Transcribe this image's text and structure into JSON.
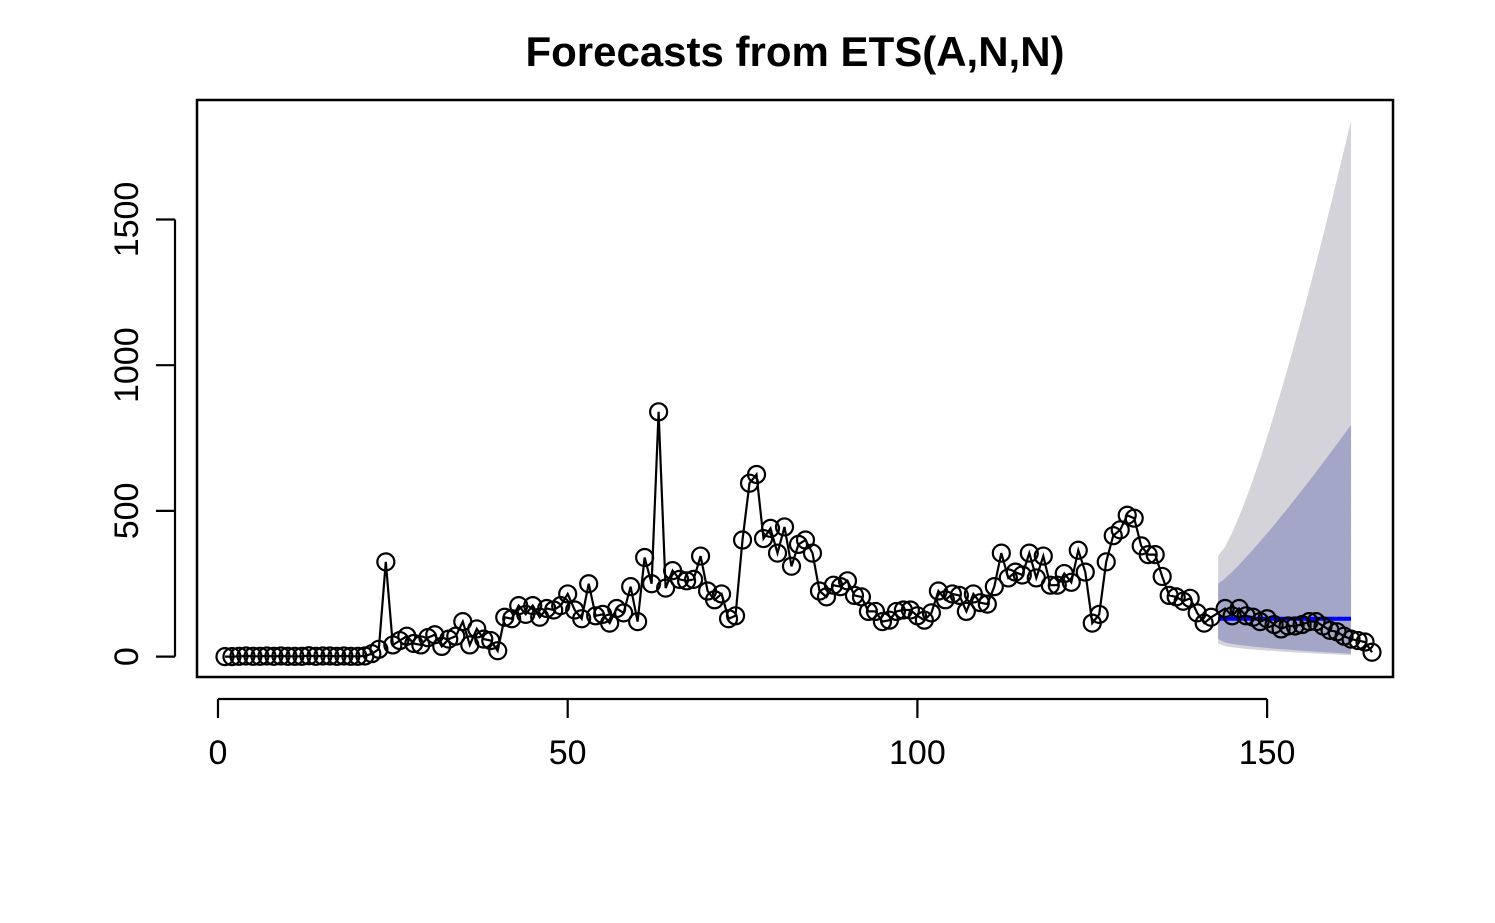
{
  "chart_data": {
    "type": "line",
    "title": "Forecasts from ETS(A,N,N)",
    "xlabel": "",
    "ylabel": "",
    "xlim": [
      -3,
      168
    ],
    "ylim": [
      -70,
      1910
    ],
    "x_ticks": [
      0,
      50,
      100,
      150
    ],
    "y_ticks": [
      0,
      500,
      1000,
      1500
    ],
    "grid": false,
    "legend": "none",
    "colors": {
      "series_line": "#000000",
      "forecast_line": "#0000ff",
      "band_80": "#a3a6c6",
      "band_95": "#d3d3d9"
    },
    "series": [
      {
        "values": [
          0,
          0,
          1,
          2,
          1,
          1,
          2,
          1,
          2,
          1,
          1,
          1,
          3,
          1,
          2,
          2,
          1,
          2,
          1,
          1,
          2,
          10,
          25,
          325,
          40,
          55,
          70,
          45,
          40,
          65,
          75,
          35,
          60,
          70,
          120,
          40,
          95,
          60,
          55,
          20,
          135,
          130,
          175,
          145,
          175,
          135,
          165,
          160,
          175,
          215,
          160,
          130,
          250,
          140,
          145,
          115,
          165,
          150,
          240,
          120,
          340,
          250,
          840,
          235,
          295,
          265,
          260,
          265,
          345,
          225,
          195,
          215,
          130,
          140,
          400,
          595,
          625,
          405,
          440,
          355,
          445,
          310,
          385,
          400,
          355,
          225,
          205,
          245,
          240,
          260,
          210,
          205,
          155,
          155,
          120,
          125,
          155,
          160,
          160,
          140,
          125,
          150,
          225,
          195,
          215,
          210,
          155,
          215,
          185,
          180,
          240,
          355,
          270,
          290,
          280,
          355,
          270,
          345,
          245,
          245,
          285,
          255,
          365,
          290,
          115,
          145,
          325,
          415,
          435,
          485,
          475,
          380,
          350,
          350,
          275,
          210,
          205,
          190,
          200,
          150,
          115,
          135
        ]
      }
    ],
    "observed_after_forecast_start": {
      "x_start": 144,
      "values": [
        165,
        140,
        165,
        140,
        135,
        120,
        130,
        110,
        95,
        105,
        105,
        110,
        120,
        120,
        105,
        90,
        85,
        70,
        60,
        55,
        50,
        15
      ]
    },
    "forecast": {
      "x_start": 143,
      "x_end": 162,
      "point": 130,
      "lo80_start": 60,
      "lo80_end": 10,
      "hi80_start": 250,
      "hi80_end": 795,
      "lo95_start": 45,
      "lo95_end": 5,
      "hi95_start": 345,
      "hi95_end": 1840
    }
  }
}
